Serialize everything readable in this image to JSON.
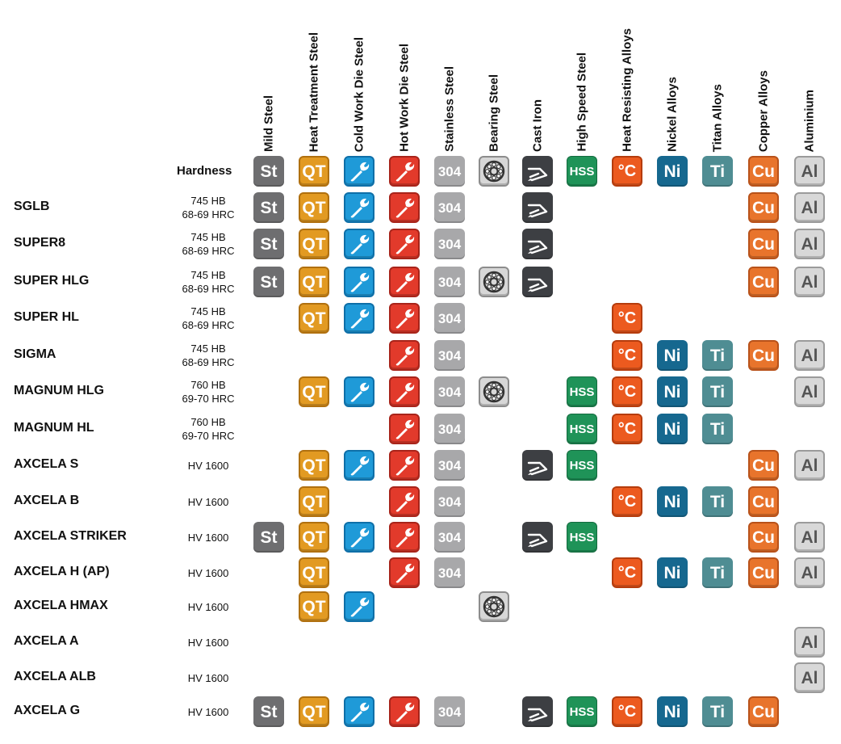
{
  "header": {
    "hardness_label": "Hardness"
  },
  "columns": [
    {
      "key": "st",
      "label": "Mild Steel",
      "icon": "mild-steel-icon",
      "text": "St"
    },
    {
      "key": "qt",
      "label": "Heat Treatment Steel",
      "icon": "heat-treatment-steel-icon",
      "text": "QT"
    },
    {
      "key": "cw",
      "label": "Cold Work Die Steel",
      "icon": "wrench-blue-icon",
      "text": ""
    },
    {
      "key": "hw",
      "label": "Hot Work Die Steel",
      "icon": "wrench-red-icon",
      "text": ""
    },
    {
      "key": "ss",
      "label": "Stainless Steel",
      "icon": "stainless-steel-icon",
      "text": "304"
    },
    {
      "key": "br",
      "label": "Bearing Steel",
      "icon": "bearing-icon",
      "text": ""
    },
    {
      "key": "ci",
      "label": "Cast Iron",
      "icon": "cast-iron-icon",
      "text": ""
    },
    {
      "key": "hss",
      "label": "High Speed Steel",
      "icon": "high-speed-steel-icon",
      "text": "HSS"
    },
    {
      "key": "hr",
      "label": "Heat Resisting Alloys",
      "icon": "heat-resisting-alloys-icon",
      "text": "°C"
    },
    {
      "key": "ni",
      "label": "Nickel Alloys",
      "icon": "nickel-alloys-icon",
      "text": "Ni"
    },
    {
      "key": "ti",
      "label": "Titan Alloys",
      "icon": "titan-alloys-icon",
      "text": "Ti"
    },
    {
      "key": "cu",
      "label": "Copper Alloys",
      "icon": "copper-alloys-icon",
      "text": "Cu"
    },
    {
      "key": "al",
      "label": "Aluminium",
      "icon": "aluminium-icon",
      "text": "Al"
    }
  ],
  "rows": [
    {
      "name": "SGLB",
      "hardness": "745 HB\n68-69 HRC",
      "materials": [
        "st",
        "qt",
        "cw",
        "hw",
        "ss",
        "ci",
        "cu",
        "al"
      ]
    },
    {
      "name": "SUPER8",
      "hardness": "745 HB\n68-69 HRC",
      "materials": [
        "st",
        "qt",
        "cw",
        "hw",
        "ss",
        "ci",
        "cu",
        "al"
      ]
    },
    {
      "name": "SUPER HLG",
      "hardness": "745 HB\n68-69 HRC",
      "materials": [
        "st",
        "qt",
        "cw",
        "hw",
        "ss",
        "br",
        "ci",
        "cu",
        "al"
      ]
    },
    {
      "name": "SUPER HL",
      "hardness": "745 HB\n68-69 HRC",
      "materials": [
        "qt",
        "cw",
        "hw",
        "ss",
        "hr"
      ]
    },
    {
      "name": "SIGMA",
      "hardness": "745 HB\n68-69 HRC",
      "materials": [
        "hw",
        "ss",
        "hr",
        "ni",
        "ti",
        "cu",
        "al"
      ]
    },
    {
      "name": "MAGNUM HLG",
      "hardness": "760 HB\n69-70 HRC",
      "materials": [
        "qt",
        "cw",
        "hw",
        "ss",
        "br",
        "hss",
        "hr",
        "ni",
        "ti",
        "al"
      ]
    },
    {
      "name": "MAGNUM HL",
      "hardness": "760 HB\n69-70 HRC",
      "materials": [
        "hw",
        "ss",
        "hss",
        "hr",
        "ni",
        "ti"
      ]
    },
    {
      "name": "AXCELA S",
      "hardness": "HV 1600",
      "materials": [
        "qt",
        "cw",
        "hw",
        "ss",
        "ci",
        "hss",
        "cu",
        "al"
      ]
    },
    {
      "name": "AXCELA B",
      "hardness": "HV 1600",
      "materials": [
        "qt",
        "hw",
        "ss",
        "hr",
        "ni",
        "ti",
        "cu"
      ]
    },
    {
      "name": "AXCELA STRIKER",
      "hardness": "HV 1600",
      "materials": [
        "st",
        "qt",
        "cw",
        "hw",
        "ss",
        "ci",
        "hss",
        "cu",
        "al"
      ]
    },
    {
      "name": "AXCELA H (AP)",
      "hardness": "HV 1600",
      "materials": [
        "qt",
        "hw",
        "ss",
        "hr",
        "ni",
        "ti",
        "cu",
        "al"
      ]
    },
    {
      "name": "AXCELA HMAX",
      "hardness": "HV 1600",
      "materials": [
        "qt",
        "cw",
        "br"
      ]
    },
    {
      "name": "AXCELA A",
      "hardness": "HV 1600",
      "materials": [
        "al"
      ]
    },
    {
      "name": "AXCELA ALB",
      "hardness": "HV 1600",
      "materials": [
        "al"
      ]
    },
    {
      "name": "AXCELA G",
      "hardness": "HV 1600",
      "materials": [
        "st",
        "qt",
        "cw",
        "hw",
        "ss",
        "ci",
        "hss",
        "hr",
        "ni",
        "ti",
        "cu"
      ]
    }
  ]
}
